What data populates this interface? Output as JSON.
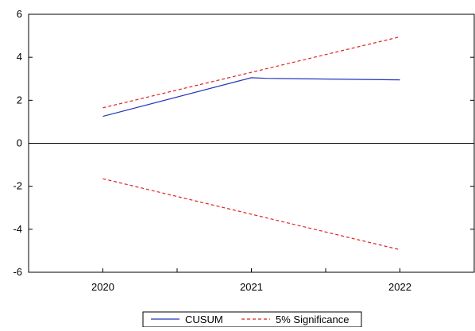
{
  "chart_data": {
    "type": "line",
    "title": "",
    "xlabel": "",
    "ylabel": "",
    "x": [
      2020,
      2021,
      2022
    ],
    "xticks": [
      "2020",
      "2021",
      "2022"
    ],
    "xlim": [
      2019.5,
      2022.5
    ],
    "ylim": [
      -6,
      6
    ],
    "yticks": [
      -6,
      -4,
      -2,
      0,
      2,
      4,
      6
    ],
    "grid": false,
    "zero_line": true,
    "legend_position": "bottom-center",
    "series": [
      {
        "name": "CUSUM",
        "color": "#2233bb",
        "style": "solid",
        "points": [
          [
            2020,
            1.25
          ],
          [
            2021,
            3.05
          ],
          [
            2021.1,
            3.02
          ],
          [
            2022,
            2.95
          ]
        ]
      },
      {
        "name": "5% Significance",
        "color": "#dd2222",
        "style": "dashed",
        "points": [
          [
            2020,
            1.65
          ],
          [
            2022,
            4.95
          ]
        ]
      },
      {
        "name": "",
        "color": "#dd2222",
        "style": "dashed",
        "points": [
          [
            2020,
            -1.65
          ],
          [
            2022,
            -4.95
          ]
        ]
      }
    ]
  }
}
